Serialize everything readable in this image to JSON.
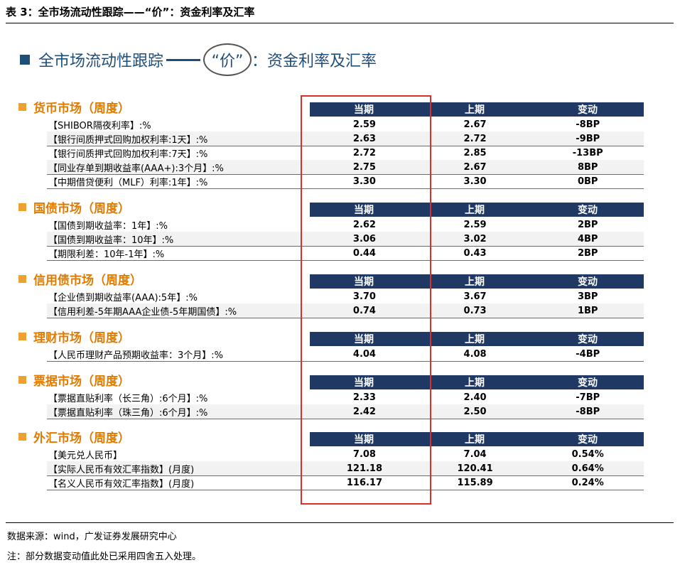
{
  "caption": "表 3：全市场流动性跟踪——“价”：资金利率及汇率",
  "banner": {
    "prefix": "全市场流动性跟踪",
    "circled": "“价”",
    "suffix": "：资金利率及汇率"
  },
  "col_headers": {
    "current": "当期",
    "previous": "上期",
    "change": "变动"
  },
  "sections": [
    {
      "title": "货币市场（周度）",
      "rows": [
        {
          "label": "【SHIBOR隔夜利率】:%",
          "current": "2.59",
          "previous": "2.67",
          "change": "-8BP"
        },
        {
          "label": "【银行间质押式回购加权利率:1天】:%",
          "current": "2.63",
          "previous": "2.72",
          "change": "-9BP"
        },
        {
          "label": "【银行间质押式回购加权利率:7天】:%",
          "current": "2.72",
          "previous": "2.85",
          "change": "-13BP"
        },
        {
          "label": "【同业存单到期收益率(AAA+):3个月】:%",
          "current": "2.75",
          "previous": "2.67",
          "change": "8BP"
        },
        {
          "label": "【中期借贷便利（MLF）利率:1年】:%",
          "current": "3.30",
          "previous": "3.30",
          "change": "0BP"
        }
      ]
    },
    {
      "title": "国债市场（周度）",
      "rows": [
        {
          "label": "【国债到期收益率：1年】:%",
          "current": "2.62",
          "previous": "2.59",
          "change": "2BP"
        },
        {
          "label": "【国债到期收益率：10年】:%",
          "current": "3.06",
          "previous": "3.02",
          "change": "4BP"
        },
        {
          "label": "【期限利差：10年-1年】:%",
          "current": "0.44",
          "previous": "0.43",
          "change": "2BP"
        }
      ]
    },
    {
      "title": "信用债市场（周度）",
      "rows": [
        {
          "label": "【企业债到期收益率(AAA):5年】:%",
          "current": "3.70",
          "previous": "3.67",
          "change": "3BP"
        },
        {
          "label": "【信用利差-5年期AAA企业债-5年期国债】:%",
          "current": "0.74",
          "previous": "0.73",
          "change": "1BP"
        }
      ]
    },
    {
      "title": "理财市场（周度）",
      "rows": [
        {
          "label": "【人民币理财产品预期收益率：3个月】:%",
          "current": "4.04",
          "previous": "4.08",
          "change": "-4BP"
        }
      ]
    },
    {
      "title": "票据市场（周度）",
      "rows": [
        {
          "label": "【票据直贴利率（长三角）:6个月】:%",
          "current": "2.33",
          "previous": "2.40",
          "change": "-7BP"
        },
        {
          "label": "【票据直贴利率（珠三角）:6个月】:%",
          "current": "2.42",
          "previous": "2.50",
          "change": "-8BP"
        }
      ]
    },
    {
      "title": "外汇市场（周度）",
      "rows": [
        {
          "label": "【美元兑人民币】",
          "current": "7.08",
          "previous": "7.04",
          "change": "0.54%"
        },
        {
          "label": "【实际人民币有效汇率指数】(月度)",
          "current": "121.18",
          "previous": "120.41",
          "change": "0.64%"
        },
        {
          "label": "【名义人民币有效汇率指数】(月度)",
          "current": "116.17",
          "previous": "115.89",
          "change": "0.24%"
        }
      ]
    }
  ],
  "source": "数据来源：wind，广发证券发展研究中心",
  "note": "注：部分数据变动值此处已采用四舍五入处理。",
  "colors": {
    "header_bg": "#1f3864",
    "section_title": "#e07b00",
    "highlight_box": "#d9302a",
    "banner": "#1f4e79"
  }
}
